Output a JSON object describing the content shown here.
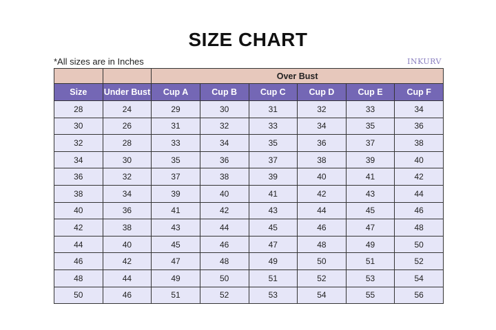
{
  "title": "SIZE CHART",
  "note": "*All sizes are in Inches",
  "logo": "INKURV",
  "colors": {
    "group_header": "#e7c8bc",
    "header": "#7467b5",
    "row": "#e6e6f8"
  },
  "group_header": "Over Bust",
  "headers": [
    "Size",
    "Under Bust",
    "Cup A",
    "Cup B",
    "Cup C",
    "Cup D",
    "Cup E",
    "Cup F"
  ],
  "rows": [
    [
      "28",
      "24",
      "29",
      "30",
      "31",
      "32",
      "33",
      "34"
    ],
    [
      "30",
      "26",
      "31",
      "32",
      "33",
      "34",
      "35",
      "36"
    ],
    [
      "32",
      "28",
      "33",
      "34",
      "35",
      "36",
      "37",
      "38"
    ],
    [
      "34",
      "30",
      "35",
      "36",
      "37",
      "38",
      "39",
      "40"
    ],
    [
      "36",
      "32",
      "37",
      "38",
      "39",
      "40",
      "41",
      "42"
    ],
    [
      "38",
      "34",
      "39",
      "40",
      "41",
      "42",
      "43",
      "44"
    ],
    [
      "40",
      "36",
      "41",
      "42",
      "43",
      "44",
      "45",
      "46"
    ],
    [
      "42",
      "38",
      "43",
      "44",
      "45",
      "46",
      "47",
      "48"
    ],
    [
      "44",
      "40",
      "45",
      "46",
      "47",
      "48",
      "49",
      "50"
    ],
    [
      "46",
      "42",
      "47",
      "48",
      "49",
      "50",
      "51",
      "52"
    ],
    [
      "48",
      "44",
      "49",
      "50",
      "51",
      "52",
      "53",
      "54"
    ],
    [
      "50",
      "46",
      "51",
      "52",
      "53",
      "54",
      "55",
      "56"
    ]
  ]
}
